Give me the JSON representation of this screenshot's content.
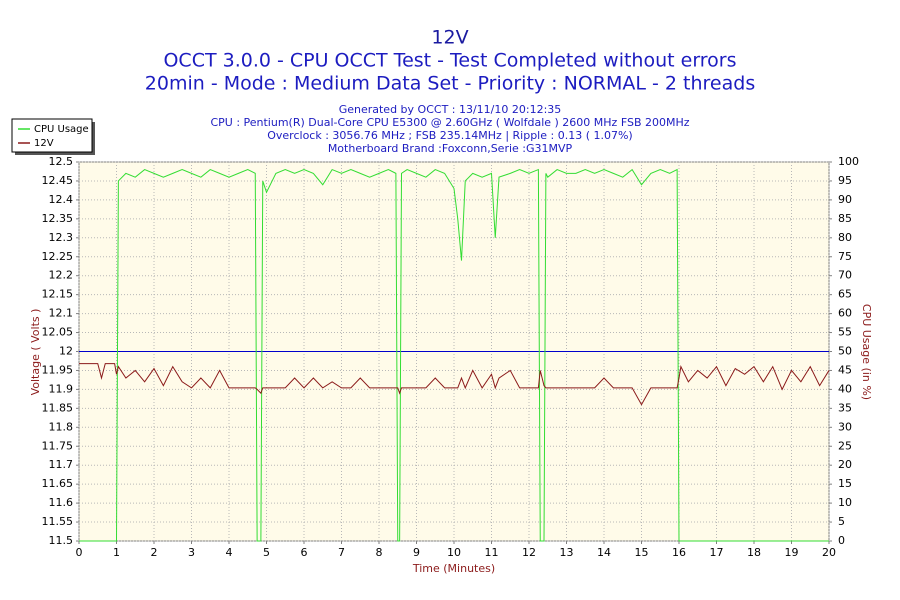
{
  "chart_data": {
    "type": "line",
    "title": "12V",
    "subtitle": [
      "OCCT 3.0.0 - CPU OCCT Test - Test Completed without errors",
      "20min - Mode : Medium Data Set - Priority : NORMAL - 2 threads"
    ],
    "info": [
      "Generated by OCCT : 13/11/10 20:12:35",
      "CPU : Pentium(R) Dual-Core CPU E5300 @ 2.60GHz ( Wolfdale ) 2600 MHz FSB 200MHz",
      "Overclock : 3056.76 MHz ; FSB 235.14MHz | Ripple : 0.13 ( 1.07%)",
      "Motherboard Brand :Foxconn,Serie :G31MVP"
    ],
    "x_label": "Time (Minutes)",
    "y_label": "Voltage ( Volts )",
    "y2_label": "CPU Usage (in %)",
    "x": [
      0,
      0.25,
      0.5,
      0.6,
      0.7,
      0.95,
      1.0,
      1.05,
      1.25,
      1.5,
      1.75,
      2,
      2.25,
      2.5,
      2.75,
      3,
      3.25,
      3.5,
      3.75,
      4,
      4.25,
      4.5,
      4.7,
      4.75,
      4.85,
      4.9,
      5,
      5.25,
      5.5,
      5.75,
      6,
      6.25,
      6.5,
      6.75,
      7,
      7.25,
      7.5,
      7.75,
      8,
      8.25,
      8.45,
      8.5,
      8.55,
      8.6,
      8.75,
      9,
      9.25,
      9.5,
      9.75,
      10,
      10.1,
      10.2,
      10.3,
      10.5,
      10.75,
      11,
      11.1,
      11.2,
      11.5,
      11.75,
      12,
      12.25,
      12.3,
      12.4,
      12.45,
      12.5,
      12.75,
      13,
      13.25,
      13.5,
      13.75,
      14,
      14.25,
      14.5,
      14.75,
      15,
      15.25,
      15.5,
      15.75,
      15.95,
      16,
      16.05,
      16.25,
      16.5,
      16.75,
      17,
      17.25,
      17.5,
      17.75,
      18,
      18.25,
      18.5,
      18.75,
      19,
      19.25,
      19.5,
      19.75,
      20
    ],
    "series": [
      {
        "name": "CPU Usage",
        "color": "#33dd33",
        "axis": "y2",
        "values": [
          0,
          0,
          0,
          0,
          0,
          0,
          0,
          95,
          97,
          96,
          98,
          97,
          96,
          97,
          98,
          97,
          96,
          98,
          97,
          96,
          97,
          98,
          97,
          0,
          0,
          95,
          92,
          97,
          98,
          97,
          98,
          97,
          94,
          98,
          97,
          98,
          97,
          96,
          97,
          98,
          97,
          0,
          0,
          97,
          98,
          97,
          96,
          98,
          97,
          93,
          85,
          74,
          95,
          97,
          96,
          97,
          80,
          96,
          97,
          98,
          97,
          98,
          0,
          0,
          97,
          96,
          98,
          97,
          97,
          98,
          97,
          98,
          97,
          96,
          98,
          94,
          97,
          98,
          97,
          98,
          0,
          0,
          0,
          0,
          0,
          0,
          0,
          0,
          0,
          0,
          0,
          0,
          0,
          0,
          0,
          0,
          0,
          0
        ]
      },
      {
        "name": "12V",
        "color": "#8b1a1a",
        "values": [
          11.968,
          11.968,
          11.968,
          11.93,
          11.968,
          11.968,
          11.94,
          11.96,
          11.93,
          11.95,
          11.92,
          11.955,
          11.91,
          11.96,
          11.92,
          11.904,
          11.93,
          11.904,
          11.95,
          11.904,
          11.904,
          11.904,
          11.904,
          11.9,
          11.89,
          11.904,
          11.904,
          11.904,
          11.904,
          11.93,
          11.904,
          11.93,
          11.904,
          11.92,
          11.904,
          11.904,
          11.93,
          11.904,
          11.904,
          11.904,
          11.904,
          11.904,
          11.89,
          11.904,
          11.904,
          11.904,
          11.904,
          11.93,
          11.904,
          11.904,
          11.904,
          11.93,
          11.904,
          11.95,
          11.904,
          11.94,
          11.904,
          11.93,
          11.95,
          11.904,
          11.904,
          11.904,
          11.95,
          11.91,
          11.904,
          11.904,
          11.904,
          11.904,
          11.904,
          11.904,
          11.904,
          11.93,
          11.904,
          11.904,
          11.904,
          11.86,
          11.904,
          11.904,
          11.904,
          11.904,
          11.93,
          11.96,
          11.92,
          11.95,
          11.93,
          11.96,
          11.91,
          11.955,
          11.94,
          11.96,
          11.92,
          11.96,
          11.9,
          11.95,
          11.92,
          11.96,
          11.91,
          11.95
        ]
      }
    ],
    "reference_line": {
      "value": 12,
      "color": "#0000cc"
    },
    "xlim": [
      0,
      20
    ],
    "xticks": [
      0,
      1,
      2,
      3,
      4,
      5,
      6,
      7,
      8,
      9,
      10,
      11,
      12,
      13,
      14,
      15,
      16,
      17,
      18,
      19,
      20
    ],
    "ylim": [
      11.5,
      12.5
    ],
    "yticks": [
      11.5,
      11.55,
      11.6,
      11.65,
      11.7,
      11.75,
      11.8,
      11.85,
      11.9,
      11.95,
      12,
      12.05,
      12.1,
      12.15,
      12.2,
      12.25,
      12.3,
      12.35,
      12.4,
      12.45,
      12.5
    ],
    "y2lim": [
      0,
      100
    ],
    "y2ticks": [
      0,
      5,
      10,
      15,
      20,
      25,
      30,
      35,
      40,
      45,
      50,
      55,
      60,
      65,
      70,
      75,
      80,
      85,
      90,
      95,
      100
    ],
    "grid": true,
    "legend": "top-left"
  }
}
